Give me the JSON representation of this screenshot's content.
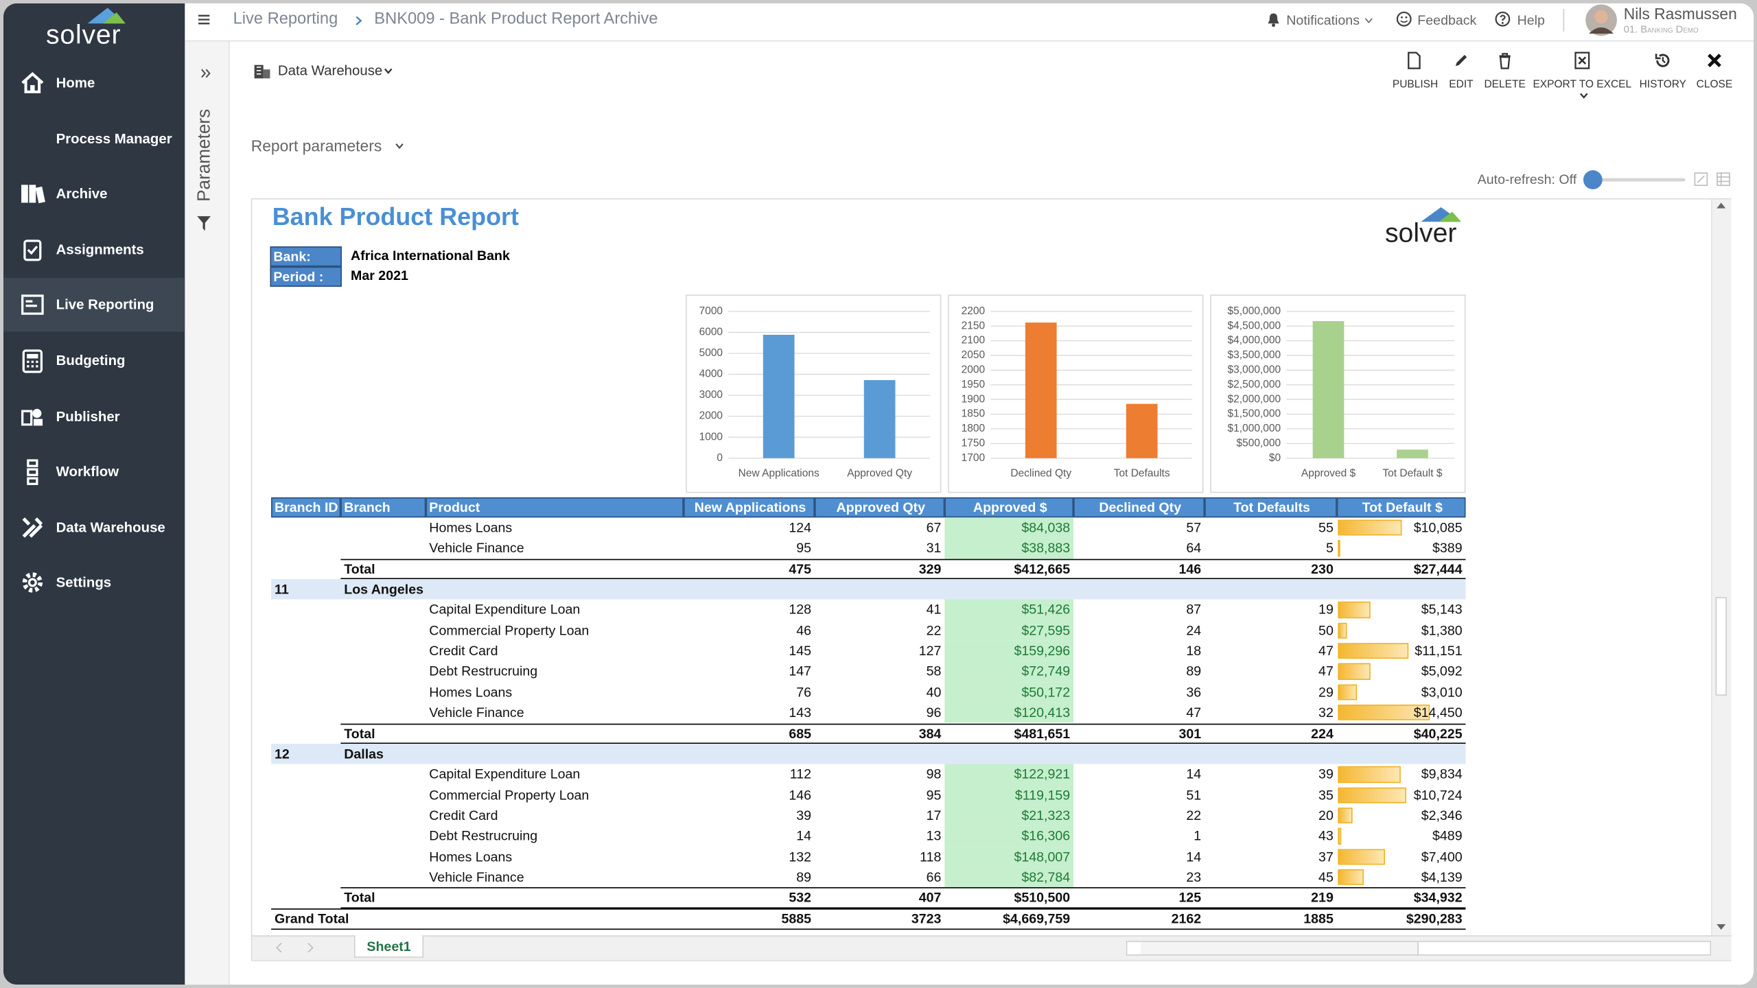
{
  "sidebar": {
    "brand": "solver",
    "items": [
      "Home",
      "Process Manager",
      "Archive",
      "Assignments",
      "Live Reporting",
      "Budgeting",
      "Publisher",
      "Workflow",
      "Data Warehouse",
      "Settings"
    ]
  },
  "header": {
    "breadcrumb": [
      "Live Reporting",
      "BNK009 - Bank Product Report Archive"
    ],
    "notifications": "Notifications",
    "feedback": "Feedback",
    "help": "Help",
    "user": "Nils Rasmussen",
    "user_subtitle": "01. Banking Demo"
  },
  "parameters_panel": "Parameters",
  "toolbar": {
    "source": "Data Warehouse",
    "actions": [
      "PUBLISH",
      "EDIT",
      "DELETE",
      "EXPORT TO EXCEL",
      "HISTORY",
      "CLOSE"
    ]
  },
  "report_parameters": "Report parameters",
  "auto_refresh": "Auto-refresh: Off",
  "report": {
    "title": "Bank Product Report",
    "logo": "solver",
    "info": [
      [
        "Bank:",
        "Africa International Bank"
      ],
      [
        "Period :",
        "Mar 2021"
      ]
    ]
  },
  "chart_data": [
    {
      "type": "bar",
      "categories": [
        "New Applications",
        "Approved Qty"
      ],
      "values": [
        5885,
        3723
      ],
      "color": "#5b9bd5",
      "ylim": [
        0,
        7000
      ],
      "yticks": [
        0,
        1000,
        2000,
        3000,
        4000,
        5000,
        6000,
        7000
      ],
      "grid": true
    },
    {
      "type": "bar",
      "categories": [
        "Declined Qty",
        "Tot Defaults"
      ],
      "values": [
        2162,
        1885
      ],
      "color": "#ed7d31",
      "ylim": [
        1700,
        2200
      ],
      "yticks": [
        1700,
        1750,
        1800,
        1850,
        1900,
        1950,
        2000,
        2050,
        2100,
        2150,
        2200
      ],
      "grid": true
    },
    {
      "type": "bar",
      "categories": [
        "Approved $",
        "Tot Default $"
      ],
      "values": [
        4669759,
        290283
      ],
      "color": "#a9d18e",
      "ylim": [
        0,
        5000000
      ],
      "yticks": [
        {
          "value": 0,
          "label": "$0"
        },
        {
          "value": 500000,
          "label": "$500,000"
        },
        {
          "value": 1000000,
          "label": "$1,000,000"
        },
        {
          "value": 1500000,
          "label": "$1,500,000"
        },
        {
          "value": 2000000,
          "label": "$2,000,000"
        },
        {
          "value": 2500000,
          "label": "$2,500,000"
        },
        {
          "value": 3000000,
          "label": "$3,000,000"
        },
        {
          "value": 3500000,
          "label": "$3,500,000"
        },
        {
          "value": 4000000,
          "label": "$4,000,000"
        },
        {
          "value": 4500000,
          "label": "$4,500,000"
        },
        {
          "value": 5000000,
          "label": "$5,000,000"
        }
      ],
      "grid": true
    }
  ],
  "table": {
    "columns": [
      "Branch ID",
      "Branch",
      "Product",
      "New Applications",
      "Approved Qty",
      "Approved $",
      "Declined Qty",
      "Tot Defaults",
      "Tot Default $"
    ],
    "groups": [
      {
        "rows": [
          [
            "Homes Loans",
            124,
            67,
            "$84,038",
            57,
            55,
            {
              "value": 10085,
              "label": "$10,085"
            }
          ],
          [
            "Vehicle Finance",
            95,
            31,
            "$38,883",
            64,
            5,
            {
              "value": 389,
              "label": "$389"
            }
          ]
        ],
        "total": [
          "Total",
          475,
          329,
          "$412,665",
          146,
          230,
          "$27,444"
        ]
      },
      {
        "branch_id": "11",
        "branch": "Los Angeles",
        "rows": [
          [
            "Capital Expenditure Loan",
            128,
            41,
            "$51,426",
            87,
            19,
            {
              "value": 5143,
              "label": "$5,143"
            }
          ],
          [
            "Commercial Property Loan",
            46,
            22,
            "$27,595",
            24,
            50,
            {
              "value": 1380,
              "label": "$1,380"
            }
          ],
          [
            "Credit Card",
            145,
            127,
            "$159,296",
            18,
            47,
            {
              "value": 11151,
              "label": "$11,151"
            }
          ],
          [
            "Debt Restrucruing",
            147,
            58,
            "$72,749",
            89,
            47,
            {
              "value": 5092,
              "label": "$5,092"
            }
          ],
          [
            "Homes Loans",
            76,
            40,
            "$50,172",
            36,
            29,
            {
              "value": 3010,
              "label": "$3,010"
            }
          ],
          [
            "Vehicle Finance",
            143,
            96,
            "$120,413",
            47,
            32,
            {
              "value": 14450,
              "label": "$14,450"
            }
          ]
        ],
        "total": [
          "Total",
          685,
          384,
          "$481,651",
          301,
          224,
          "$40,225"
        ]
      },
      {
        "branch_id": "12",
        "branch": "Dallas",
        "rows": [
          [
            "Capital Expenditure Loan",
            112,
            98,
            "$122,921",
            14,
            39,
            {
              "value": 9834,
              "label": "$9,834"
            }
          ],
          [
            "Commercial Property Loan",
            146,
            95,
            "$119,159",
            51,
            35,
            {
              "value": 10724,
              "label": "$10,724"
            }
          ],
          [
            "Credit Card",
            39,
            17,
            "$21,323",
            22,
            20,
            {
              "value": 2346,
              "label": "$2,346"
            }
          ],
          [
            "Debt Restrucruing",
            14,
            13,
            "$16,306",
            1,
            43,
            {
              "value": 489,
              "label": "$489"
            }
          ],
          [
            "Homes Loans",
            132,
            118,
            "$148,007",
            14,
            37,
            {
              "value": 7400,
              "label": "$7,400"
            }
          ],
          [
            "Vehicle Finance",
            89,
            66,
            "$82,784",
            23,
            45,
            {
              "value": 4139,
              "label": "$4,139"
            }
          ]
        ],
        "total": [
          "Total",
          532,
          407,
          "$510,500",
          125,
          219,
          "$34,932"
        ]
      }
    ],
    "grand_total": [
      "Grand Total",
      5885,
      3723,
      "$4,669,759",
      2162,
      1885,
      "$290,283"
    ]
  },
  "sheet_tab": "Sheet1"
}
